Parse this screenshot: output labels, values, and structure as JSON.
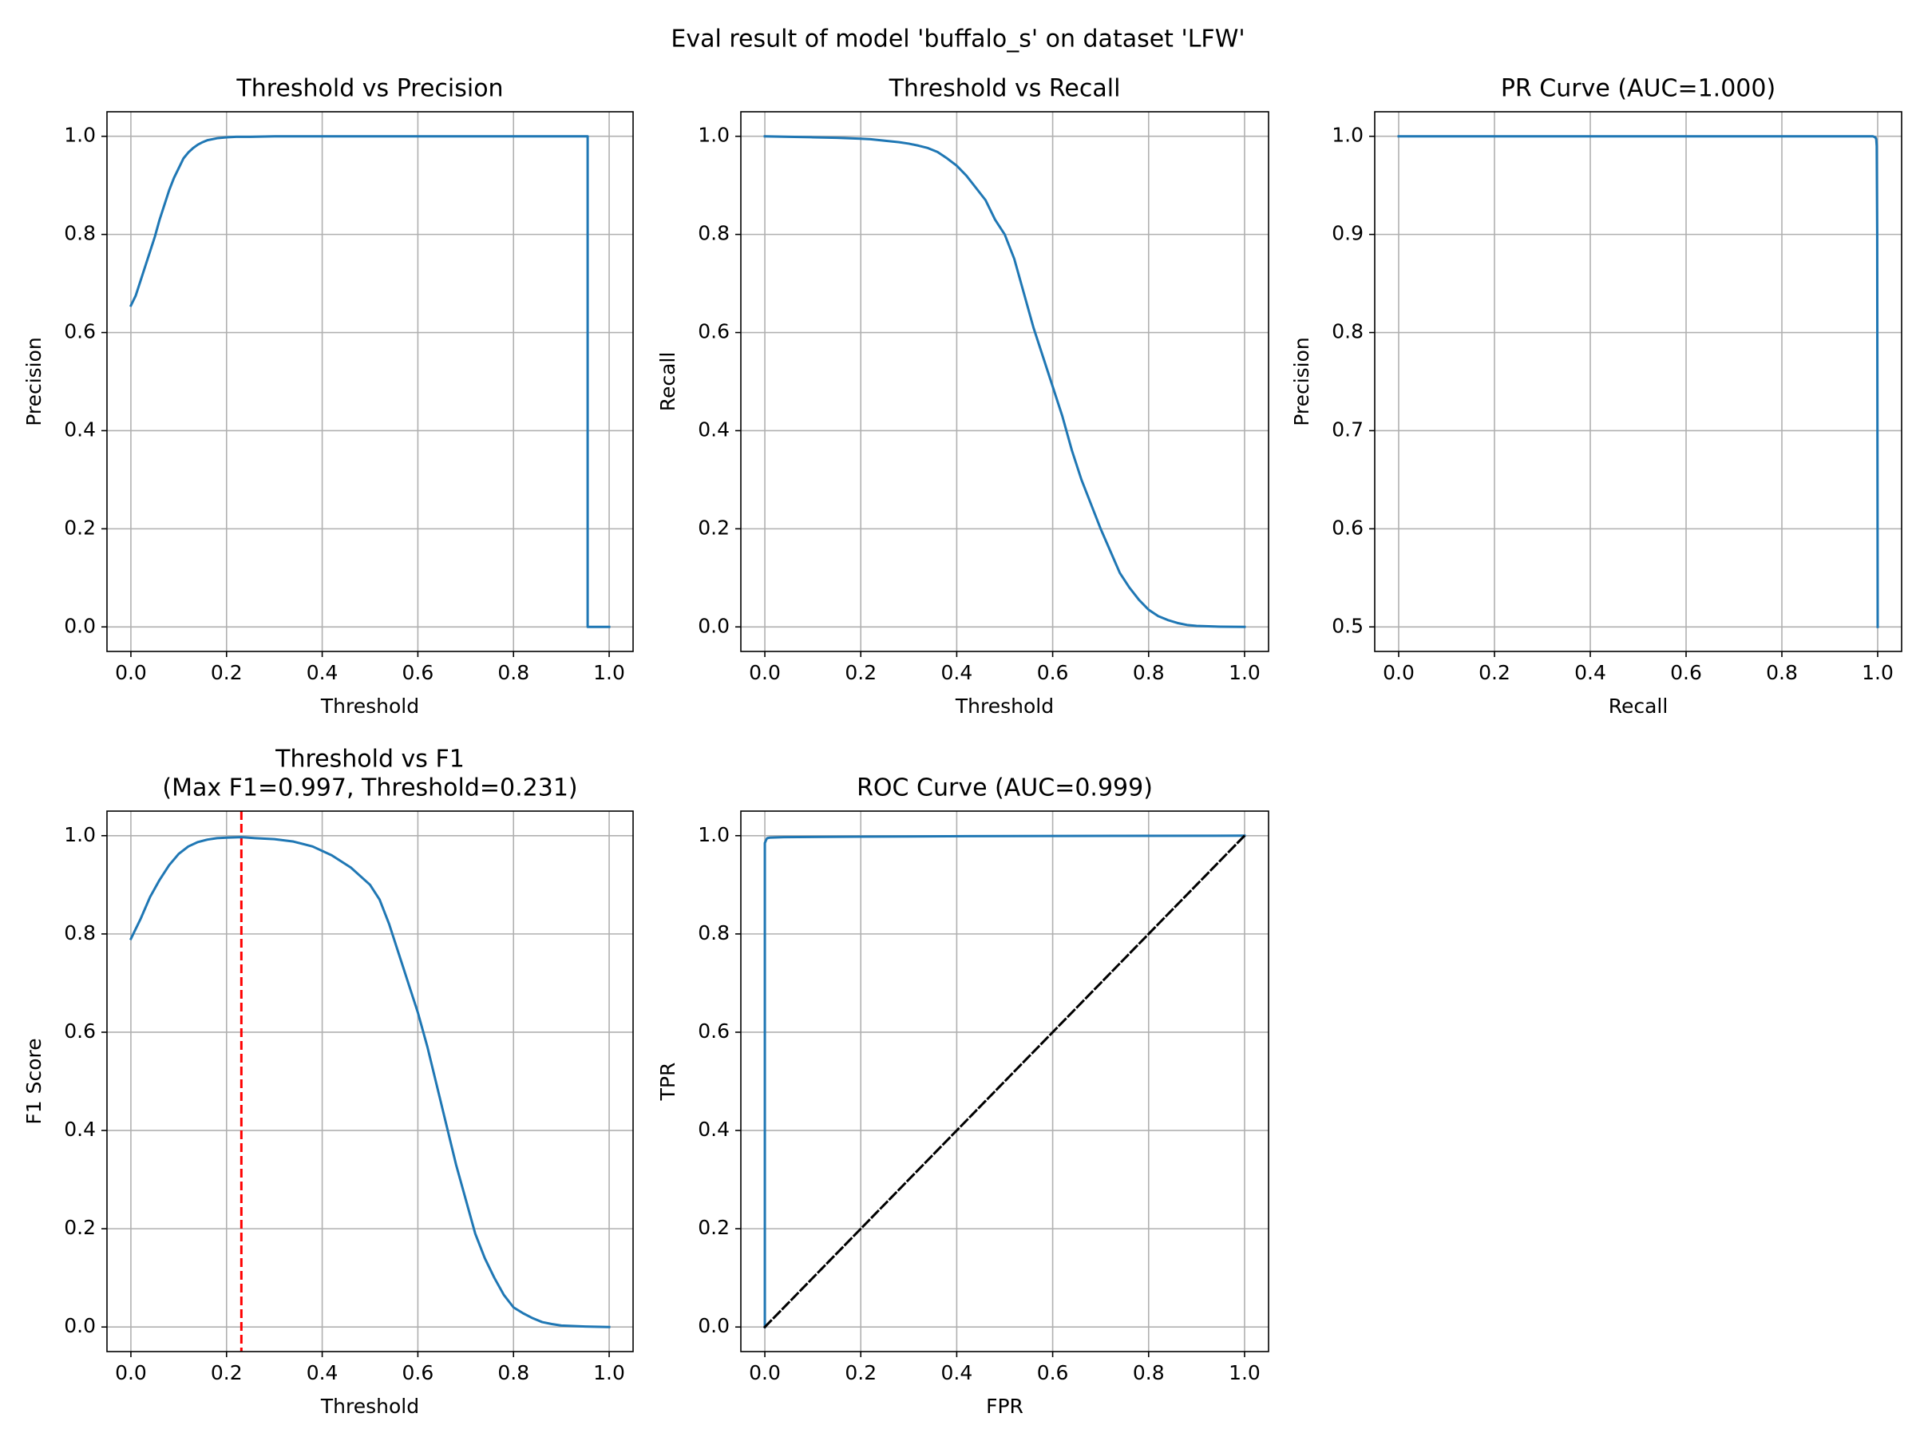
{
  "figure": {
    "suptitle": "Eval result of model 'buffalo_s' on dataset 'LFW'"
  },
  "colors": {
    "line": "#1f77b4",
    "grid": "#b0b0b0",
    "dashed_red": "#ff0000",
    "dashed_black": "#000000",
    "axes": "#000000"
  },
  "chart_data": [
    {
      "type": "line",
      "title": "Threshold vs Precision",
      "xlabel": "Threshold",
      "ylabel": "Precision",
      "xlim": [
        -0.05,
        1.05
      ],
      "ylim": [
        -0.05,
        1.05
      ],
      "xticks": [
        0.0,
        0.2,
        0.4,
        0.6,
        0.8,
        1.0
      ],
      "xtick_labels": [
        "0.0",
        "0.2",
        "0.4",
        "0.6",
        "0.8",
        "1.0"
      ],
      "yticks": [
        0.0,
        0.2,
        0.4,
        0.6,
        0.8,
        1.0
      ],
      "ytick_labels": [
        "0.0",
        "0.2",
        "0.4",
        "0.6",
        "0.8",
        "1.0"
      ],
      "grid": true,
      "series": [
        {
          "style": "solid",
          "color": "#1f77b4",
          "x": [
            0.0,
            0.01,
            0.02,
            0.03,
            0.04,
            0.05,
            0.06,
            0.07,
            0.08,
            0.09,
            0.1,
            0.11,
            0.12,
            0.13,
            0.14,
            0.15,
            0.16,
            0.17,
            0.18,
            0.2,
            0.22,
            0.25,
            0.3,
            0.4,
            0.6,
            0.8,
            0.9,
            0.955,
            0.955,
            0.96,
            1.0
          ],
          "y": [
            0.655,
            0.675,
            0.705,
            0.735,
            0.765,
            0.795,
            0.83,
            0.86,
            0.89,
            0.915,
            0.935,
            0.955,
            0.967,
            0.976,
            0.983,
            0.988,
            0.992,
            0.994,
            0.996,
            0.998,
            0.999,
            0.999,
            1.0,
            1.0,
            1.0,
            1.0,
            1.0,
            1.0,
            0.0,
            0.0,
            0.0
          ]
        }
      ]
    },
    {
      "type": "line",
      "title": "Threshold vs Recall",
      "xlabel": "Threshold",
      "ylabel": "Recall",
      "xlim": [
        -0.05,
        1.05
      ],
      "ylim": [
        -0.05,
        1.05
      ],
      "xticks": [
        0.0,
        0.2,
        0.4,
        0.6,
        0.8,
        1.0
      ],
      "xtick_labels": [
        "0.0",
        "0.2",
        "0.4",
        "0.6",
        "0.8",
        "1.0"
      ],
      "yticks": [
        0.0,
        0.2,
        0.4,
        0.6,
        0.8,
        1.0
      ],
      "ytick_labels": [
        "0.0",
        "0.2",
        "0.4",
        "0.6",
        "0.8",
        "1.0"
      ],
      "grid": true,
      "series": [
        {
          "style": "solid",
          "color": "#1f77b4",
          "x": [
            0.0,
            0.05,
            0.1,
            0.15,
            0.2,
            0.22,
            0.25,
            0.28,
            0.3,
            0.32,
            0.34,
            0.36,
            0.38,
            0.4,
            0.42,
            0.44,
            0.46,
            0.48,
            0.5,
            0.52,
            0.54,
            0.56,
            0.58,
            0.6,
            0.62,
            0.64,
            0.66,
            0.68,
            0.7,
            0.72,
            0.74,
            0.76,
            0.78,
            0.8,
            0.82,
            0.84,
            0.86,
            0.88,
            0.9,
            0.95,
            1.0
          ],
          "y": [
            1.0,
            0.999,
            0.998,
            0.997,
            0.995,
            0.994,
            0.991,
            0.988,
            0.985,
            0.981,
            0.976,
            0.968,
            0.955,
            0.94,
            0.92,
            0.895,
            0.87,
            0.83,
            0.8,
            0.75,
            0.68,
            0.61,
            0.55,
            0.49,
            0.43,
            0.36,
            0.3,
            0.25,
            0.2,
            0.155,
            0.11,
            0.08,
            0.055,
            0.035,
            0.022,
            0.014,
            0.008,
            0.004,
            0.002,
            0.0005,
            0.0
          ]
        }
      ]
    },
    {
      "type": "line",
      "title": "PR Curve (AUC=1.000)",
      "xlabel": "Recall",
      "ylabel": "Precision",
      "xlim": [
        -0.05,
        1.05
      ],
      "ylim": [
        0.475,
        1.025
      ],
      "xticks": [
        0.0,
        0.2,
        0.4,
        0.6,
        0.8,
        1.0
      ],
      "xtick_labels": [
        "0.0",
        "0.2",
        "0.4",
        "0.6",
        "0.8",
        "1.0"
      ],
      "yticks": [
        0.5,
        0.6,
        0.7,
        0.8,
        0.9,
        1.0
      ],
      "ytick_labels": [
        "0.5",
        "0.6",
        "0.7",
        "0.8",
        "0.9",
        "1.0"
      ],
      "grid": true,
      "series": [
        {
          "style": "solid",
          "color": "#1f77b4",
          "x": [
            0.0,
            0.2,
            0.4,
            0.6,
            0.8,
            0.99,
            0.995,
            0.997,
            0.998,
            0.999,
            1.0
          ],
          "y": [
            1.0,
            1.0,
            1.0,
            1.0,
            1.0,
            1.0,
            0.999,
            0.997,
            0.99,
            0.9,
            0.5
          ]
        }
      ]
    },
    {
      "type": "line",
      "title": "Threshold vs F1",
      "subtitle": "(Max F1=0.997, Threshold=0.231)",
      "xlabel": "Threshold",
      "ylabel": "F1 Score",
      "xlim": [
        -0.05,
        1.05
      ],
      "ylim": [
        -0.05,
        1.05
      ],
      "xticks": [
        0.0,
        0.2,
        0.4,
        0.6,
        0.8,
        1.0
      ],
      "xtick_labels": [
        "0.0",
        "0.2",
        "0.4",
        "0.6",
        "0.8",
        "1.0"
      ],
      "yticks": [
        0.0,
        0.2,
        0.4,
        0.6,
        0.8,
        1.0
      ],
      "ytick_labels": [
        "0.0",
        "0.2",
        "0.4",
        "0.6",
        "0.8",
        "1.0"
      ],
      "grid": true,
      "vline": {
        "x": 0.231,
        "color": "#ff0000",
        "style": "dashed"
      },
      "series": [
        {
          "style": "solid",
          "color": "#1f77b4",
          "x": [
            0.0,
            0.02,
            0.04,
            0.06,
            0.08,
            0.1,
            0.12,
            0.14,
            0.16,
            0.18,
            0.2,
            0.231,
            0.26,
            0.3,
            0.34,
            0.38,
            0.42,
            0.46,
            0.5,
            0.52,
            0.54,
            0.56,
            0.58,
            0.6,
            0.62,
            0.64,
            0.66,
            0.68,
            0.7,
            0.72,
            0.74,
            0.76,
            0.78,
            0.8,
            0.82,
            0.84,
            0.86,
            0.88,
            0.9,
            0.95,
            1.0
          ],
          "y": [
            0.79,
            0.83,
            0.875,
            0.91,
            0.94,
            0.963,
            0.978,
            0.987,
            0.992,
            0.995,
            0.996,
            0.997,
            0.995,
            0.993,
            0.988,
            0.978,
            0.96,
            0.935,
            0.9,
            0.87,
            0.82,
            0.76,
            0.7,
            0.64,
            0.57,
            0.49,
            0.41,
            0.33,
            0.26,
            0.19,
            0.14,
            0.1,
            0.065,
            0.04,
            0.028,
            0.018,
            0.01,
            0.006,
            0.003,
            0.001,
            0.0
          ]
        }
      ]
    },
    {
      "type": "line",
      "title": "ROC Curve (AUC=0.999)",
      "xlabel": "FPR",
      "ylabel": "TPR",
      "xlim": [
        -0.05,
        1.05
      ],
      "ylim": [
        -0.05,
        1.05
      ],
      "xticks": [
        0.0,
        0.2,
        0.4,
        0.6,
        0.8,
        1.0
      ],
      "xtick_labels": [
        "0.0",
        "0.2",
        "0.4",
        "0.6",
        "0.8",
        "1.0"
      ],
      "yticks": [
        0.0,
        0.2,
        0.4,
        0.6,
        0.8,
        1.0
      ],
      "ytick_labels": [
        "0.0",
        "0.2",
        "0.4",
        "0.6",
        "0.8",
        "1.0"
      ],
      "grid": true,
      "series": [
        {
          "style": "solid",
          "color": "#1f77b4",
          "x": [
            0.0,
            0.0,
            0.003,
            0.005,
            0.01,
            0.04,
            0.2,
            0.42,
            1.0
          ],
          "y": [
            0.0,
            0.985,
            0.992,
            0.995,
            0.996,
            0.997,
            0.998,
            0.999,
            1.0
          ]
        },
        {
          "style": "dashed",
          "color": "#000000",
          "x": [
            0.0,
            1.0
          ],
          "y": [
            0.0,
            1.0
          ]
        }
      ]
    }
  ]
}
